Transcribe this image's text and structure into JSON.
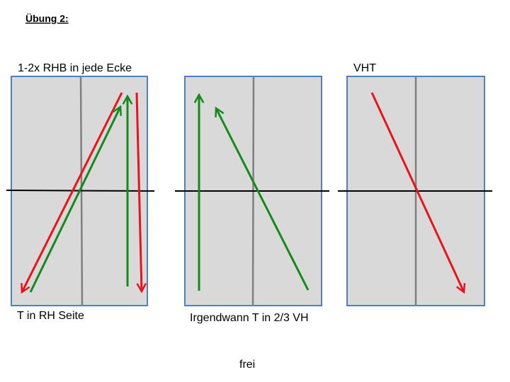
{
  "header": {
    "title": "Übung 2:"
  },
  "panels": [
    {
      "top_label": "1-2x RHB in jede Ecke",
      "bottom_label": "T in RH Seite"
    },
    {
      "bottom_label": "Irgendwann T in 2/3 VH"
    },
    {
      "top_label": "VHT"
    }
  ],
  "footer": {
    "text": "frei"
  }
}
